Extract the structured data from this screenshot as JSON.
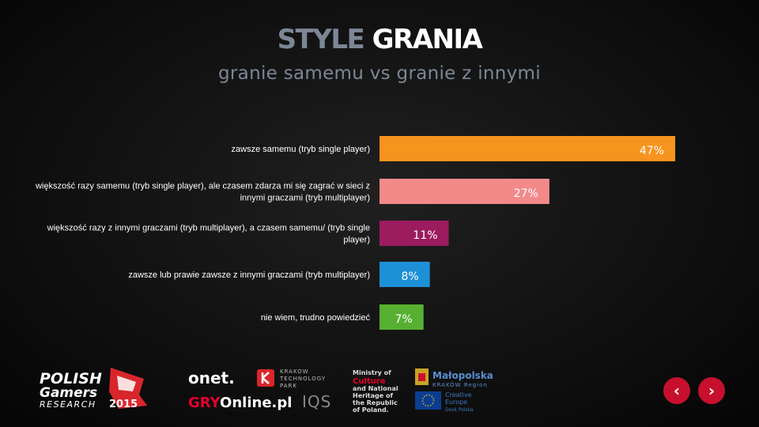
{
  "header": {
    "title_part1": "STYLE",
    "title_part2": "GRANIA",
    "subtitle": "granie samemu vs granie z innymi"
  },
  "chart_data": {
    "type": "bar",
    "orientation": "horizontal",
    "categories": [
      [
        "zawsze samemu (tryb single player)"
      ],
      [
        "większość razy samemu (tryb single player), ale czasem zdarza mi się zagrać w sieci z",
        "innymi graczami (tryb multiplayer)"
      ],
      [
        "większość razy z innymi graczami (tryb multiplayer), a czasem samemu/ (tryb single",
        "player)"
      ],
      [
        "zawsze lub prawie zawsze z innymi graczami (tryb multiplayer)"
      ],
      [
        "nie wiem, trudno powiedzieć"
      ]
    ],
    "values": [
      47,
      27,
      11,
      8,
      7
    ],
    "value_labels": [
      "47%",
      "27%",
      "11%",
      "8%",
      "7%"
    ],
    "colors": [
      "#f7941d",
      "#f28a8a",
      "#9c1c5f",
      "#1e90d8",
      "#57b031"
    ],
    "xlim": [
      0,
      47
    ],
    "grid": false
  },
  "footer": {
    "polish_gamers_line1": "POLISH",
    "polish_gamers_line2": "Gamers",
    "polish_gamers_line3": "RESEARCH",
    "polish_gamers_year": "2015",
    "onet": "onet.",
    "gryonline_red": "GRY",
    "gryonline_white": "Online.pl",
    "ktp_line1": "KRAKOW",
    "ktp_line2": "TECHNOLOGY",
    "ktp_line3": "PARK",
    "iqs": "IQS",
    "ministry_line1": "Ministry of",
    "ministry_line2": "Culture",
    "ministry_line3": "and National",
    "ministry_line4": "Heritage of",
    "ministry_line5": "the Republic",
    "ministry_line6": "of Poland.",
    "malopolska_line1": "Małopolska",
    "malopolska_line2": "KRAKÓW Region",
    "ce_line1": "Creative",
    "ce_line2": "Europe",
    "ce_line3": "Desk Polska"
  },
  "nav": {
    "prev_icon": "chevron-left-icon",
    "next_icon": "chevron-right-icon",
    "prev_glyph": "‹",
    "next_glyph": "›"
  }
}
